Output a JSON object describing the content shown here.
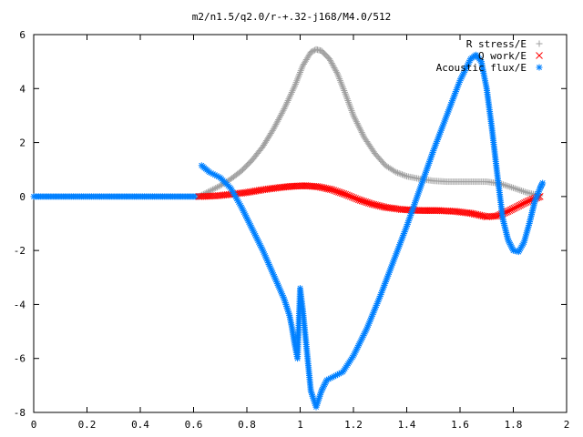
{
  "chart_data": {
    "type": "scatter",
    "title": "m2/n1.5/q2.0/r-+.32-j168/M4.0/512",
    "xlabel": "",
    "ylabel": "",
    "xlim": [
      0,
      2
    ],
    "ylim": [
      -8,
      6
    ],
    "xticks": [
      0,
      0.2,
      0.4,
      0.6,
      0.8,
      1,
      1.2,
      1.4,
      1.6,
      1.8,
      2
    ],
    "xtick_labels": [
      "0",
      "0.2",
      "0.4",
      "0.6",
      "0.8",
      "1",
      "1.2",
      "1.4",
      "1.6",
      "1.8",
      "2"
    ],
    "yticks": [
      -8,
      -6,
      -4,
      -2,
      0,
      2,
      4,
      6
    ],
    "ytick_labels": [
      "-8",
      "-6",
      "-4",
      "-2",
      "0",
      "2",
      "4",
      "6"
    ],
    "grid": false,
    "legend_position": "top-right",
    "series": [
      {
        "name": "R stress/E",
        "marker": "plus",
        "color": "#a0a0a0",
        "points": [
          [
            0.62,
            0.0
          ],
          [
            0.66,
            0.2
          ],
          [
            0.7,
            0.4
          ],
          [
            0.74,
            0.65
          ],
          [
            0.78,
            0.95
          ],
          [
            0.82,
            1.35
          ],
          [
            0.86,
            1.85
          ],
          [
            0.9,
            2.5
          ],
          [
            0.94,
            3.25
          ],
          [
            0.98,
            4.1
          ],
          [
            1.01,
            4.85
          ],
          [
            1.04,
            5.35
          ],
          [
            1.06,
            5.45
          ],
          [
            1.08,
            5.4
          ],
          [
            1.11,
            5.1
          ],
          [
            1.14,
            4.55
          ],
          [
            1.17,
            3.8
          ],
          [
            1.2,
            3.0
          ],
          [
            1.24,
            2.2
          ],
          [
            1.28,
            1.6
          ],
          [
            1.32,
            1.15
          ],
          [
            1.36,
            0.9
          ],
          [
            1.4,
            0.75
          ],
          [
            1.45,
            0.65
          ],
          [
            1.5,
            0.58
          ],
          [
            1.55,
            0.55
          ],
          [
            1.6,
            0.55
          ],
          [
            1.65,
            0.55
          ],
          [
            1.7,
            0.55
          ],
          [
            1.75,
            0.48
          ],
          [
            1.8,
            0.32
          ],
          [
            1.85,
            0.15
          ],
          [
            1.9,
            0.03
          ]
        ]
      },
      {
        "name": "Q work/E",
        "marker": "cross",
        "color": "#ff0000",
        "points": [
          [
            0.62,
            0.0
          ],
          [
            0.68,
            0.02
          ],
          [
            0.74,
            0.08
          ],
          [
            0.8,
            0.15
          ],
          [
            0.86,
            0.25
          ],
          [
            0.92,
            0.33
          ],
          [
            0.97,
            0.38
          ],
          [
            1.02,
            0.4
          ],
          [
            1.07,
            0.36
          ],
          [
            1.12,
            0.25
          ],
          [
            1.17,
            0.08
          ],
          [
            1.22,
            -0.12
          ],
          [
            1.27,
            -0.28
          ],
          [
            1.32,
            -0.4
          ],
          [
            1.38,
            -0.48
          ],
          [
            1.45,
            -0.52
          ],
          [
            1.52,
            -0.52
          ],
          [
            1.58,
            -0.55
          ],
          [
            1.64,
            -0.62
          ],
          [
            1.7,
            -0.75
          ],
          [
            1.74,
            -0.72
          ],
          [
            1.78,
            -0.55
          ],
          [
            1.82,
            -0.35
          ],
          [
            1.86,
            -0.15
          ],
          [
            1.9,
            0.0
          ]
        ]
      },
      {
        "name": "Acoustic flux/E",
        "marker": "star",
        "color": "#0080ff",
        "points": [
          [
            0.63,
            1.15
          ],
          [
            0.66,
            0.9
          ],
          [
            0.7,
            0.7
          ],
          [
            0.74,
            0.3
          ],
          [
            0.78,
            -0.4
          ],
          [
            0.82,
            -1.2
          ],
          [
            0.86,
            -2.0
          ],
          [
            0.9,
            -2.9
          ],
          [
            0.94,
            -3.8
          ],
          [
            0.96,
            -4.4
          ],
          [
            0.97,
            -4.9
          ],
          [
            0.98,
            -5.5
          ],
          [
            0.99,
            -6.0
          ],
          [
            1.0,
            -3.4
          ],
          [
            1.01,
            -4.2
          ],
          [
            1.02,
            -5.2
          ],
          [
            1.03,
            -6.2
          ],
          [
            1.04,
            -7.2
          ],
          [
            1.06,
            -7.8
          ],
          [
            1.08,
            -7.2
          ],
          [
            1.1,
            -6.8
          ],
          [
            1.12,
            -6.7
          ],
          [
            1.16,
            -6.5
          ],
          [
            1.2,
            -5.9
          ],
          [
            1.25,
            -4.9
          ],
          [
            1.3,
            -3.7
          ],
          [
            1.35,
            -2.4
          ],
          [
            1.4,
            -1.1
          ],
          [
            1.45,
            0.3
          ],
          [
            1.5,
            1.7
          ],
          [
            1.55,
            3.0
          ],
          [
            1.6,
            4.3
          ],
          [
            1.64,
            5.1
          ],
          [
            1.66,
            5.25
          ],
          [
            1.68,
            5.0
          ],
          [
            1.7,
            4.0
          ],
          [
            1.72,
            2.5
          ],
          [
            1.74,
            0.8
          ],
          [
            1.76,
            -0.8
          ],
          [
            1.78,
            -1.6
          ],
          [
            1.8,
            -2.0
          ],
          [
            1.82,
            -2.05
          ],
          [
            1.84,
            -1.7
          ],
          [
            1.86,
            -1.0
          ],
          [
            1.88,
            -0.2
          ],
          [
            1.9,
            0.3
          ],
          [
            1.91,
            0.5
          ]
        ]
      }
    ]
  }
}
